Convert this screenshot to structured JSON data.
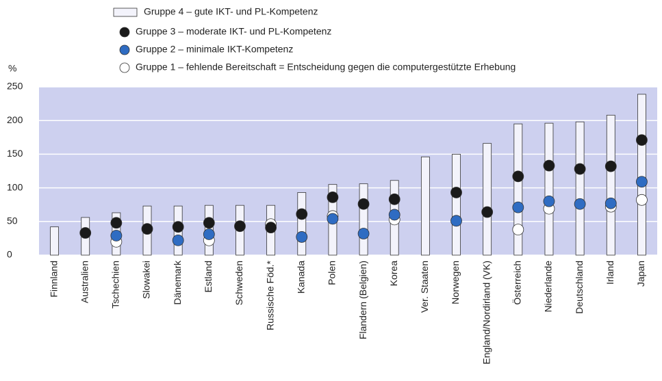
{
  "chart_data": {
    "type": "bar_dot",
    "y_label": "%",
    "categories": [
      "Finnland",
      "Australien",
      "Tschechien",
      "Slowakei",
      "Dänemark",
      "Estland",
      "Schweden",
      "Russische Föd.*",
      "Kanada",
      "Polen",
      "Flandern (Belgien)",
      "Korea",
      "Ver. Staaten",
      "Norwegen",
      "England/Nordirland (VK)",
      "Österreich",
      "Niederlande",
      "Deutschland",
      "Irland",
      "Japan"
    ],
    "series": [
      {
        "name": "Gruppe 4 – gute IKT- und PL-Kompetenz",
        "mark": "bar",
        "color": "#f3f3fb",
        "values": [
          42,
          56,
          63,
          73,
          73,
          74,
          74,
          74,
          93,
          105,
          106,
          111,
          146,
          150,
          166,
          195,
          196,
          198,
          208,
          239
        ]
      },
      {
        "name": "Gruppe 3 – moderate IKT- und PL-Kompetenz",
        "mark": "dot",
        "color": "#1a1a1a",
        "values": [
          null,
          33,
          48,
          39,
          42,
          48,
          43,
          41,
          61,
          86,
          76,
          83,
          null,
          93,
          64,
          117,
          133,
          128,
          132,
          171
        ]
      },
      {
        "name": "Gruppe 2 – minimale IKT-Kompetenz",
        "mark": "dot",
        "color": "#2f6cc2",
        "values": [
          null,
          null,
          29,
          null,
          22,
          31,
          null,
          null,
          27,
          54,
          32,
          60,
          null,
          51,
          null,
          71,
          80,
          76,
          77,
          109
        ]
      },
      {
        "name": "Gruppe 1 – fehlende Bereitschaft = Entscheidung gegen die computergestützte Erhebung",
        "mark": "dot",
        "color": "#ffffff",
        "values": [
          null,
          null,
          20,
          null,
          null,
          22,
          null,
          46,
          null,
          58,
          null,
          53,
          null,
          null,
          null,
          38,
          69,
          null,
          72,
          82
        ]
      }
    ],
    "draw_order": [
      0,
      3,
      1,
      2
    ],
    "ylim": [
      0,
      250
    ],
    "yticks": [
      0,
      50,
      100,
      150,
      200,
      250
    ],
    "grid": true
  }
}
